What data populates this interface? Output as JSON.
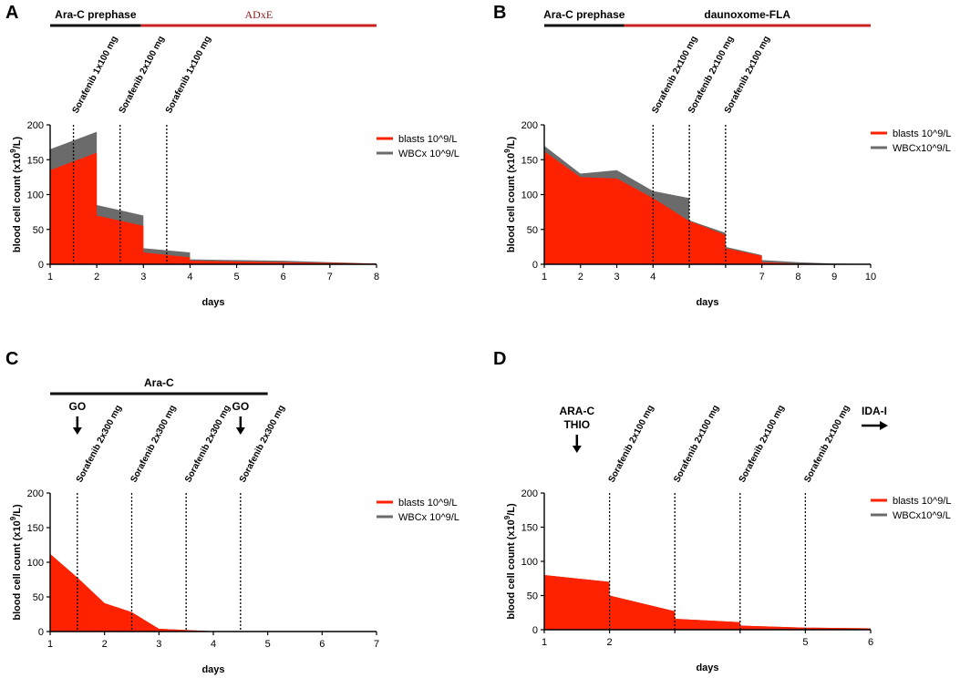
{
  "colors": {
    "blasts": "#ff2200",
    "wbc": "#6b6b6b",
    "axis": "#000000",
    "phase_black": "#111111",
    "phase_red": "#cc1f1f"
  },
  "chart_data": [
    {
      "panel": "A",
      "type": "area",
      "xlabel": "days",
      "ylabel": "blood cell count (x10",
      "ylabel_sup": "9",
      "ylabel_end": "/L)",
      "xlim": [
        1,
        8
      ],
      "ylim": [
        0,
        200
      ],
      "xticks": [
        1,
        2,
        3,
        4,
        5,
        6,
        7,
        8
      ],
      "yticks": [
        0,
        50,
        100,
        150,
        200
      ],
      "series": [
        {
          "name": "WBCx 10^9/L",
          "points": [
            [
              1,
              165
            ],
            [
              2,
              190
            ],
            [
              2,
              85
            ],
            [
              3,
              70
            ],
            [
              3,
              23
            ],
            [
              4,
              17
            ],
            [
              4,
              7
            ],
            [
              5,
              6
            ],
            [
              6,
              5
            ],
            [
              7,
              3
            ],
            [
              8,
              1
            ]
          ]
        },
        {
          "name": "blasts 10^9/L",
          "points": [
            [
              1,
              135
            ],
            [
              2,
              160
            ],
            [
              2,
              70
            ],
            [
              3,
              55
            ],
            [
              3,
              17
            ],
            [
              4,
              10
            ],
            [
              4,
              5
            ],
            [
              5,
              4
            ],
            [
              6,
              3
            ],
            [
              7,
              2
            ],
            [
              8,
              1
            ]
          ]
        }
      ],
      "legend": [
        "blasts 10^9/L",
        "WBCx 10^9/L"
      ],
      "phases": [
        {
          "label": "Ara-C prephase",
          "color": "black",
          "from": 1,
          "to": 2.95
        },
        {
          "label": "ADxE",
          "color": "red",
          "from": 2.95,
          "to": 8
        }
      ],
      "markers": [
        {
          "x": 1.5,
          "label": "Sorafenib 1x100 mg"
        },
        {
          "x": 2.5,
          "label": "Sorafenib 2x100 mg"
        },
        {
          "x": 3.5,
          "label": "Sorafenib 1x100 mg"
        }
      ]
    },
    {
      "panel": "B",
      "type": "area",
      "xlabel": "days",
      "ylabel": "blood cell count (x10",
      "ylabel_sup": "9",
      "ylabel_end": "/L)",
      "xlim": [
        1,
        10
      ],
      "ylim": [
        0,
        200
      ],
      "xticks": [
        1,
        2,
        3,
        4,
        7,
        8,
        9,
        10
      ],
      "yticks": [
        0,
        50,
        100,
        150,
        200
      ],
      "series": [
        {
          "name": "WBCx10^9/L",
          "points": [
            [
              1,
              170
            ],
            [
              2,
              130
            ],
            [
              3,
              135
            ],
            [
              4,
              105
            ],
            [
              5,
              95
            ],
            [
              5,
              63
            ],
            [
              6,
              45
            ],
            [
              6,
              25
            ],
            [
              7,
              13
            ],
            [
              7,
              6
            ],
            [
              8,
              3
            ],
            [
              9,
              1
            ],
            [
              10,
              0.5
            ]
          ]
        },
        {
          "name": "blasts 10^9/L",
          "points": [
            [
              1,
              162
            ],
            [
              2,
              125
            ],
            [
              3,
              123
            ],
            [
              4,
              95
            ],
            [
              5,
              62
            ],
            [
              6,
              42
            ],
            [
              6,
              23
            ],
            [
              7,
              12
            ],
            [
              7,
              3
            ],
            [
              8,
              1
            ],
            [
              9,
              0.5
            ],
            [
              10,
              0.3
            ]
          ]
        }
      ],
      "legend": [
        "blasts 10^9/L",
        "WBCx10^9/L"
      ],
      "phases": [
        {
          "label": "Ara-C prephase",
          "color": "black",
          "from": 1,
          "to": 3.2
        },
        {
          "label": "daunoxome-FLA",
          "color": "red",
          "from": 3.2,
          "to": 10
        }
      ],
      "markers": [
        {
          "x": 4,
          "label": "Sorafenib 2x100 mg"
        },
        {
          "x": 5,
          "label": "Sorafenib 2x100 mg"
        },
        {
          "x": 6,
          "label": "Sorafenib 2x100 mg"
        }
      ]
    },
    {
      "panel": "C",
      "type": "area",
      "xlabel": "days",
      "ylabel": "blood cell count (x10",
      "ylabel_sup": "9",
      "ylabel_end": "/L)",
      "xlim": [
        1,
        7
      ],
      "ylim": [
        0,
        200
      ],
      "xticks": [
        1,
        2,
        3,
        4,
        5,
        6,
        7
      ],
      "yticks": [
        0,
        50,
        100,
        150,
        200
      ],
      "series": [
        {
          "name": "WBCx 10^9/L",
          "points": [
            [
              1,
              112
            ],
            [
              1.5,
              78
            ],
            [
              2,
              41
            ],
            [
              2.5,
              28
            ],
            [
              3,
              4
            ],
            [
              4,
              0.5
            ],
            [
              5,
              0.3
            ],
            [
              6,
              0.3
            ],
            [
              7,
              0.3
            ]
          ]
        },
        {
          "name": "blasts 10^9/L",
          "points": [
            [
              1,
              112
            ],
            [
              1.5,
              78
            ],
            [
              2,
              41
            ],
            [
              2.5,
              28
            ],
            [
              3,
              4
            ],
            [
              4,
              0.3
            ],
            [
              5,
              0.2
            ],
            [
              6,
              0.2
            ],
            [
              7,
              0.2
            ]
          ]
        }
      ],
      "legend": [
        "blasts 10^9/L",
        "WBCx 10^9/L"
      ],
      "phases": [
        {
          "label": "Ara-C",
          "color": "black",
          "from": 1,
          "to": 5
        }
      ],
      "markers": [
        {
          "x": 1.5,
          "label": "Sorafenib 2x300 mg"
        },
        {
          "x": 2.5,
          "label": "Sorafenib 2x300 mg"
        },
        {
          "x": 3.5,
          "label": "Sorafenib 2x300 mg"
        },
        {
          "x": 4.5,
          "label": "Sorafenib 2x300 mg"
        }
      ],
      "arrows": [
        {
          "x": 1.5,
          "label": "GO"
        },
        {
          "x": 4.5,
          "label": "GO"
        }
      ]
    },
    {
      "panel": "D",
      "type": "area",
      "xlabel": "days",
      "ylabel": "blood cell count (x10",
      "ylabel_sup": "9",
      "ylabel_end": "/L)",
      "xlim": [
        1,
        6
      ],
      "ylim": [
        0,
        200
      ],
      "xticks": [
        1,
        2,
        5,
        6
      ],
      "yticks": [
        0,
        50,
        100,
        150,
        200
      ],
      "series": [
        {
          "name": "WBCx10^9/L",
          "points": [
            [
              1,
              80
            ],
            [
              2,
              70
            ],
            [
              2,
              50
            ],
            [
              3,
              27
            ],
            [
              3,
              16
            ],
            [
              4,
              11
            ],
            [
              4,
              6
            ],
            [
              5,
              3
            ],
            [
              6,
              2
            ]
          ]
        },
        {
          "name": "blasts 10^9/L",
          "points": [
            [
              1,
              80
            ],
            [
              2,
              70
            ],
            [
              2,
              50
            ],
            [
              3,
              27
            ],
            [
              3,
              16
            ],
            [
              4,
              11
            ],
            [
              4,
              6
            ],
            [
              5,
              3
            ],
            [
              6,
              2
            ]
          ]
        }
      ],
      "legend": [
        "blasts 10^9/L",
        "WBCx10^9/L"
      ],
      "phases": [],
      "markers": [
        {
          "x": 2,
          "label": "Sorafenib 2x100 mg"
        },
        {
          "x": 3,
          "label": "Sorafenib 2x100 mg"
        },
        {
          "x": 4,
          "label": "Sorafenib 2x100 mg"
        },
        {
          "x": 5,
          "label": "Sorafenib 2x100 mg"
        }
      ],
      "arrows": [
        {
          "x": 1.5,
          "label": "ARA-C",
          "label2": "THIO",
          "direction": "down"
        }
      ],
      "right_arrow": {
        "label": "IDA-I"
      }
    }
  ]
}
